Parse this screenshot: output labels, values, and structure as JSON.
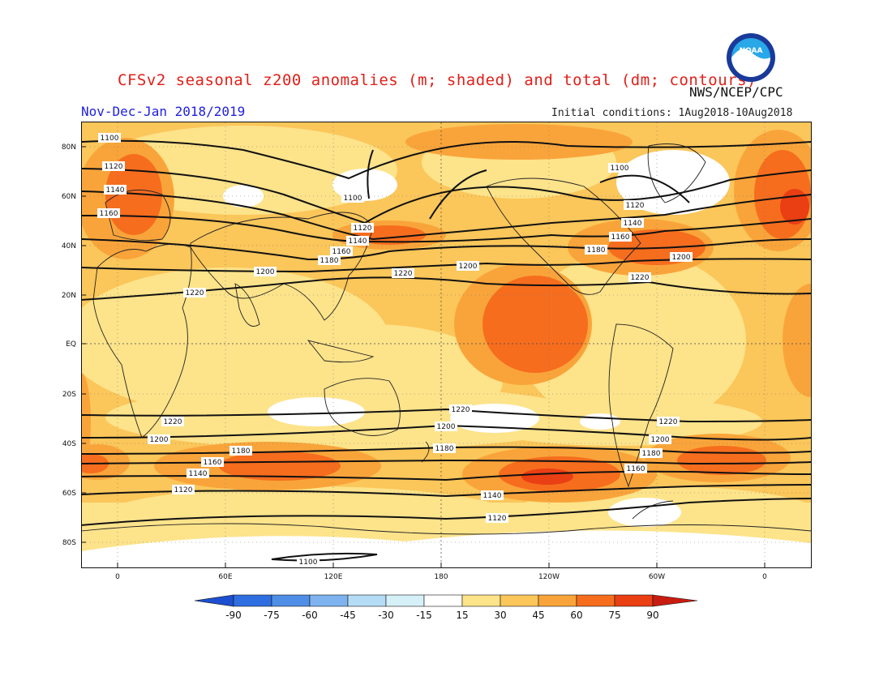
{
  "header": {
    "title": "CFSv2 seasonal z200 anomalies (m; shaded) and total (dm; contours)",
    "period": "Nov-Dec-Jan 2018/2019",
    "agency": "NWS/NCEP/CPC",
    "logo_text": "NOAA",
    "initial_conditions": "Initial conditions: 1Aug2018-10Aug2018"
  },
  "map": {
    "lat_labels": [
      "80N",
      "60N",
      "40N",
      "20N",
      "EQ",
      "20S",
      "40S",
      "60S",
      "80S"
    ],
    "lon_labels": [
      "0",
      "60E",
      "120E",
      "180",
      "120W",
      "60W",
      "0"
    ],
    "contours": [
      {
        "value": "1100",
        "label": "1100"
      },
      {
        "value": "1120",
        "label": "1120"
      },
      {
        "value": "1140",
        "label": "1140"
      },
      {
        "value": "1160",
        "label": "1160"
      },
      {
        "value": "1180",
        "label": "1180"
      },
      {
        "value": "1200",
        "label": "1200"
      },
      {
        "value": "1220",
        "label": "1220"
      }
    ]
  },
  "colorbar": {
    "labels": [
      "-90",
      "-75",
      "-60",
      "-45",
      "-30",
      "-15",
      "15",
      "30",
      "45",
      "60",
      "75",
      "90"
    ],
    "colors": {
      "neg": [
        "#1d4fd1",
        "#2e6ee0",
        "#4f8ee6",
        "#7eb3ef",
        "#b5dcf6",
        "#d6f0f8"
      ],
      "zero": "#ffffff",
      "pos": [
        "#fde38a",
        "#fbc65a",
        "#f9a43a",
        "#f66d1e",
        "#ea3e13",
        "#c81c10"
      ]
    }
  }
}
